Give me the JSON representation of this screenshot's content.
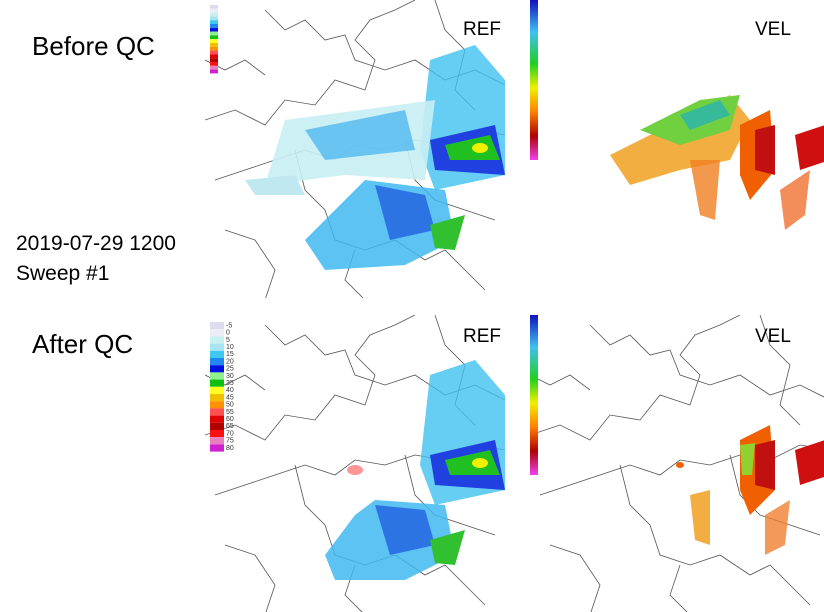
{
  "rows": [
    {
      "title": "Before QC",
      "panels": [
        {
          "label": "REF"
        },
        {
          "label": "VEL"
        }
      ]
    },
    {
      "title": "After QC",
      "panels": [
        {
          "label": "REF"
        },
        {
          "label": "VEL"
        }
      ]
    }
  ],
  "timestamp": "2019-07-29 1200",
  "sweep": "Sweep #1",
  "ref_scale": [
    {
      "label": "-5",
      "color": "#dcdcee"
    },
    {
      "label": "0",
      "color": "#ececf6"
    },
    {
      "label": "5",
      "color": "#c8f0f0"
    },
    {
      "label": "10",
      "color": "#a8e4f4"
    },
    {
      "label": "15",
      "color": "#40c8f0"
    },
    {
      "label": "20",
      "color": "#2088f0"
    },
    {
      "label": "25",
      "color": "#0010e0"
    },
    {
      "label": "30",
      "color": "#90f090"
    },
    {
      "label": "35",
      "color": "#10c010"
    },
    {
      "label": "40",
      "color": "#ffff20"
    },
    {
      "label": "45",
      "color": "#f0c000"
    },
    {
      "label": "50",
      "color": "#ff9000"
    },
    {
      "label": "55",
      "color": "#ff5050"
    },
    {
      "label": "60",
      "color": "#e00000"
    },
    {
      "label": "65",
      "color": "#b00000"
    },
    {
      "label": "70",
      "color": "#ff1010"
    },
    {
      "label": "75",
      "color": "#e880c0"
    },
    {
      "label": "80",
      "color": "#d020d0"
    }
  ]
}
